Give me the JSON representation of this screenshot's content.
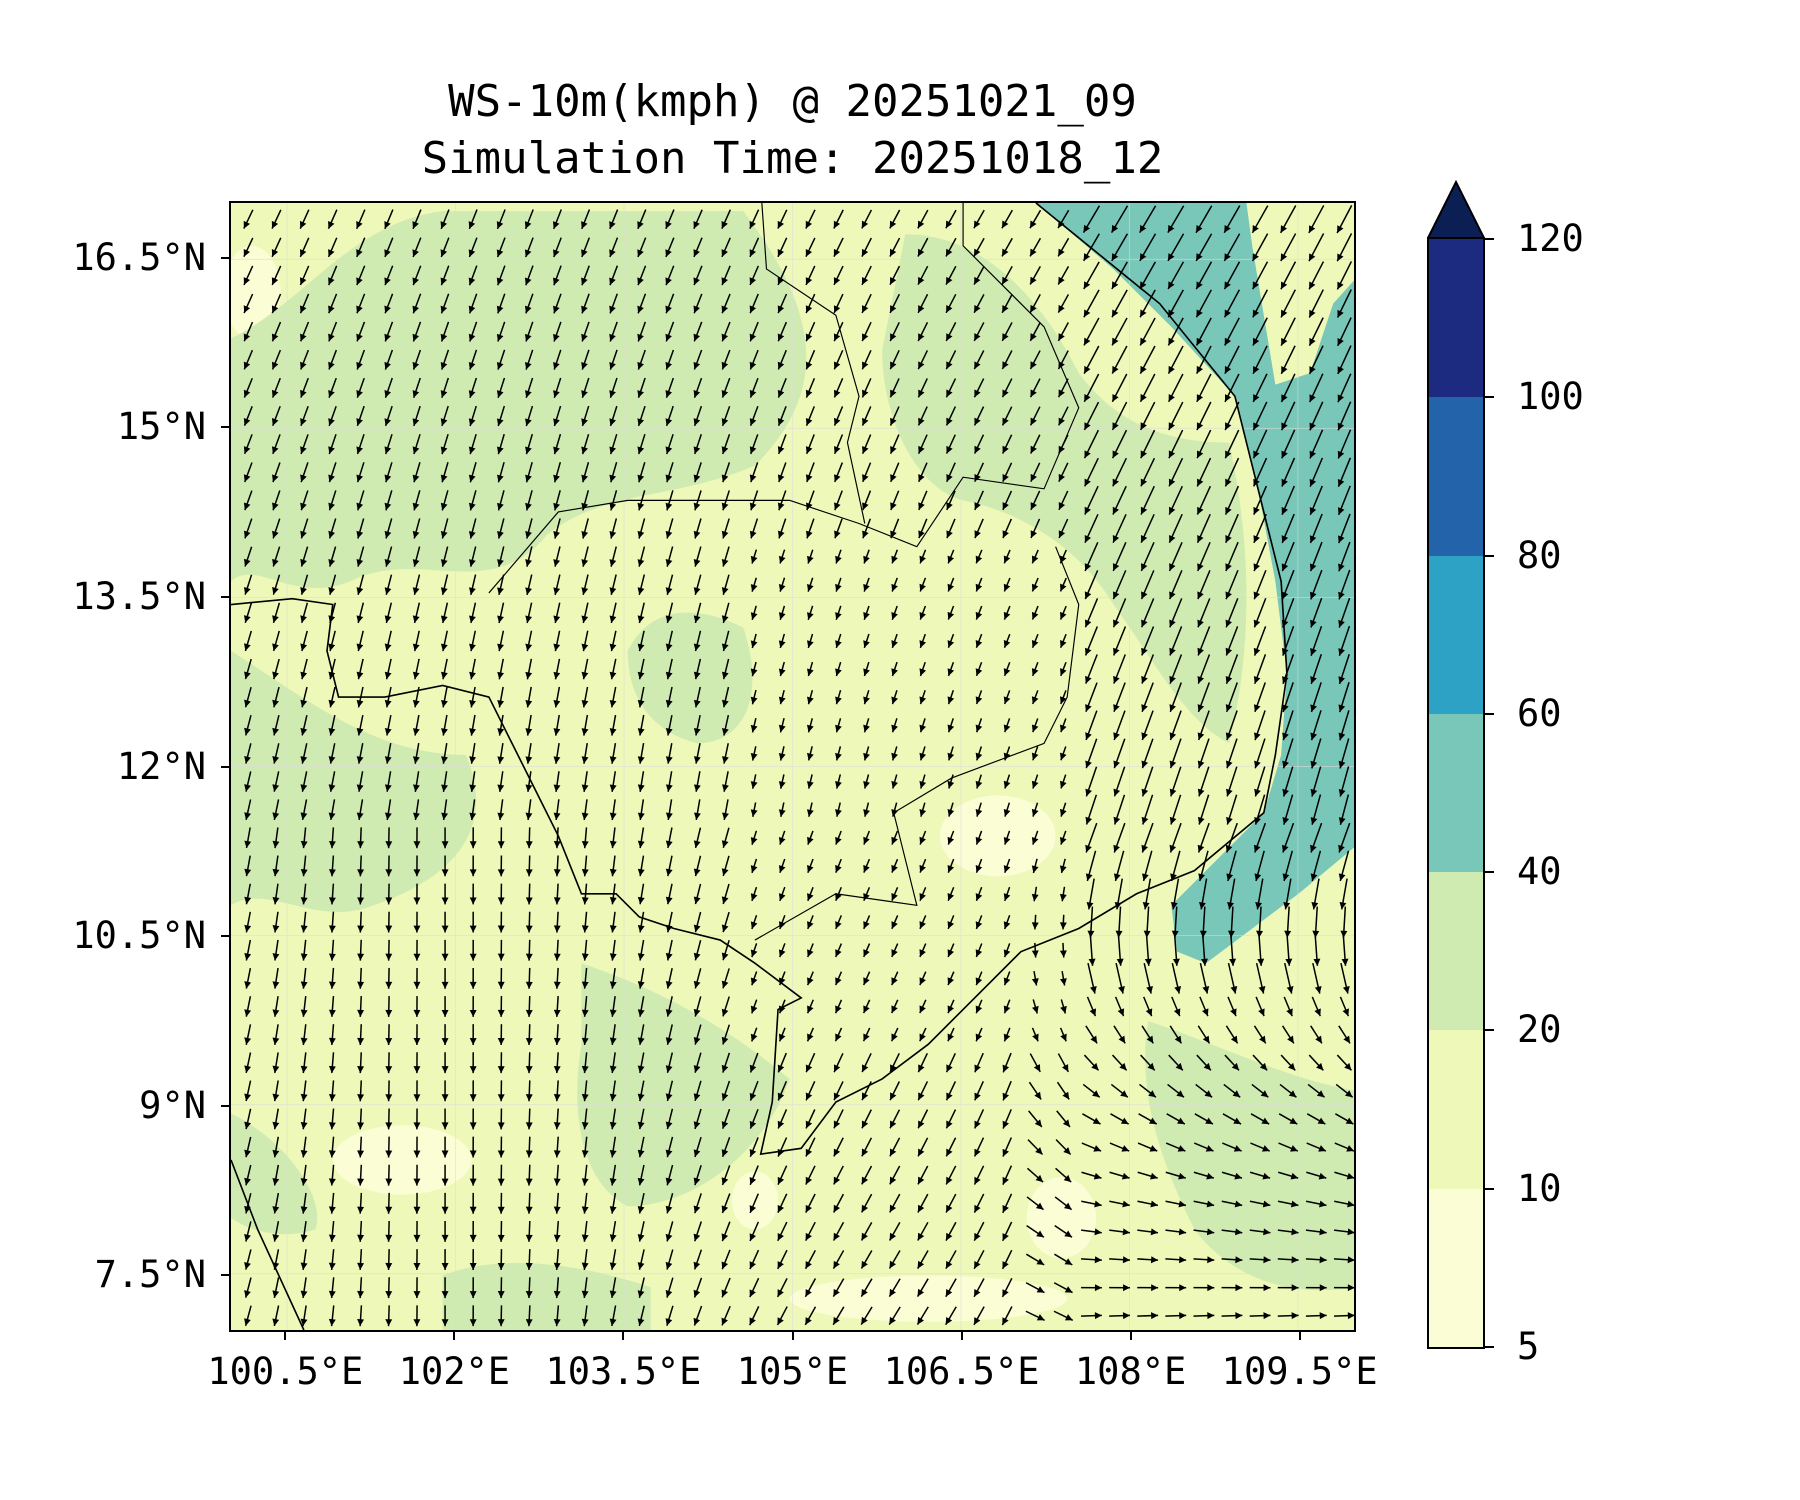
{
  "title": {
    "line1": "WS-10m(kmph) @ 20251021_09",
    "line2": "Simulation Time: 20251018_12"
  },
  "map": {
    "extent": {
      "lon_min": 100.0,
      "lon_max": 110.0,
      "lat_min": 7.0,
      "lat_max": 17.0
    },
    "lat_ticks": [
      {
        "value": 16.5,
        "label": "16.5°N"
      },
      {
        "value": 15.0,
        "label": "15°N"
      },
      {
        "value": 13.5,
        "label": "13.5°N"
      },
      {
        "value": 12.0,
        "label": "12°N"
      },
      {
        "value": 10.5,
        "label": "10.5°N"
      },
      {
        "value": 9.0,
        "label": "9°N"
      },
      {
        "value": 7.5,
        "label": "7.5°N"
      }
    ],
    "lon_ticks": [
      {
        "value": 100.5,
        "label": "100.5°E"
      },
      {
        "value": 102.0,
        "label": "102°E"
      },
      {
        "value": 103.5,
        "label": "103.5°E"
      },
      {
        "value": 105.0,
        "label": "105°E"
      },
      {
        "value": 106.5,
        "label": "106.5°E"
      },
      {
        "value": 108.0,
        "label": "108°E"
      },
      {
        "value": 109.5,
        "label": "109.5°E"
      }
    ]
  },
  "colorbar": {
    "levels": [
      {
        "from": 5,
        "to": 10,
        "color": "#fbfdd4"
      },
      {
        "from": 10,
        "to": 20,
        "color": "#eef8b8"
      },
      {
        "from": 20,
        "to": 40,
        "color": "#d0ebb2"
      },
      {
        "from": 40,
        "to": 60,
        "color": "#78c7b9"
      },
      {
        "from": 60,
        "to": 80,
        "color": "#2ea2c5"
      },
      {
        "from": 80,
        "to": 100,
        "color": "#2263a9"
      },
      {
        "from": 100,
        "to": 120,
        "color": "#1c2b7f"
      }
    ],
    "extend_color": "#0c1f55",
    "tick_labels": [
      "120",
      "100",
      "80",
      "60",
      "40",
      "20",
      "10",
      "5"
    ]
  }
}
